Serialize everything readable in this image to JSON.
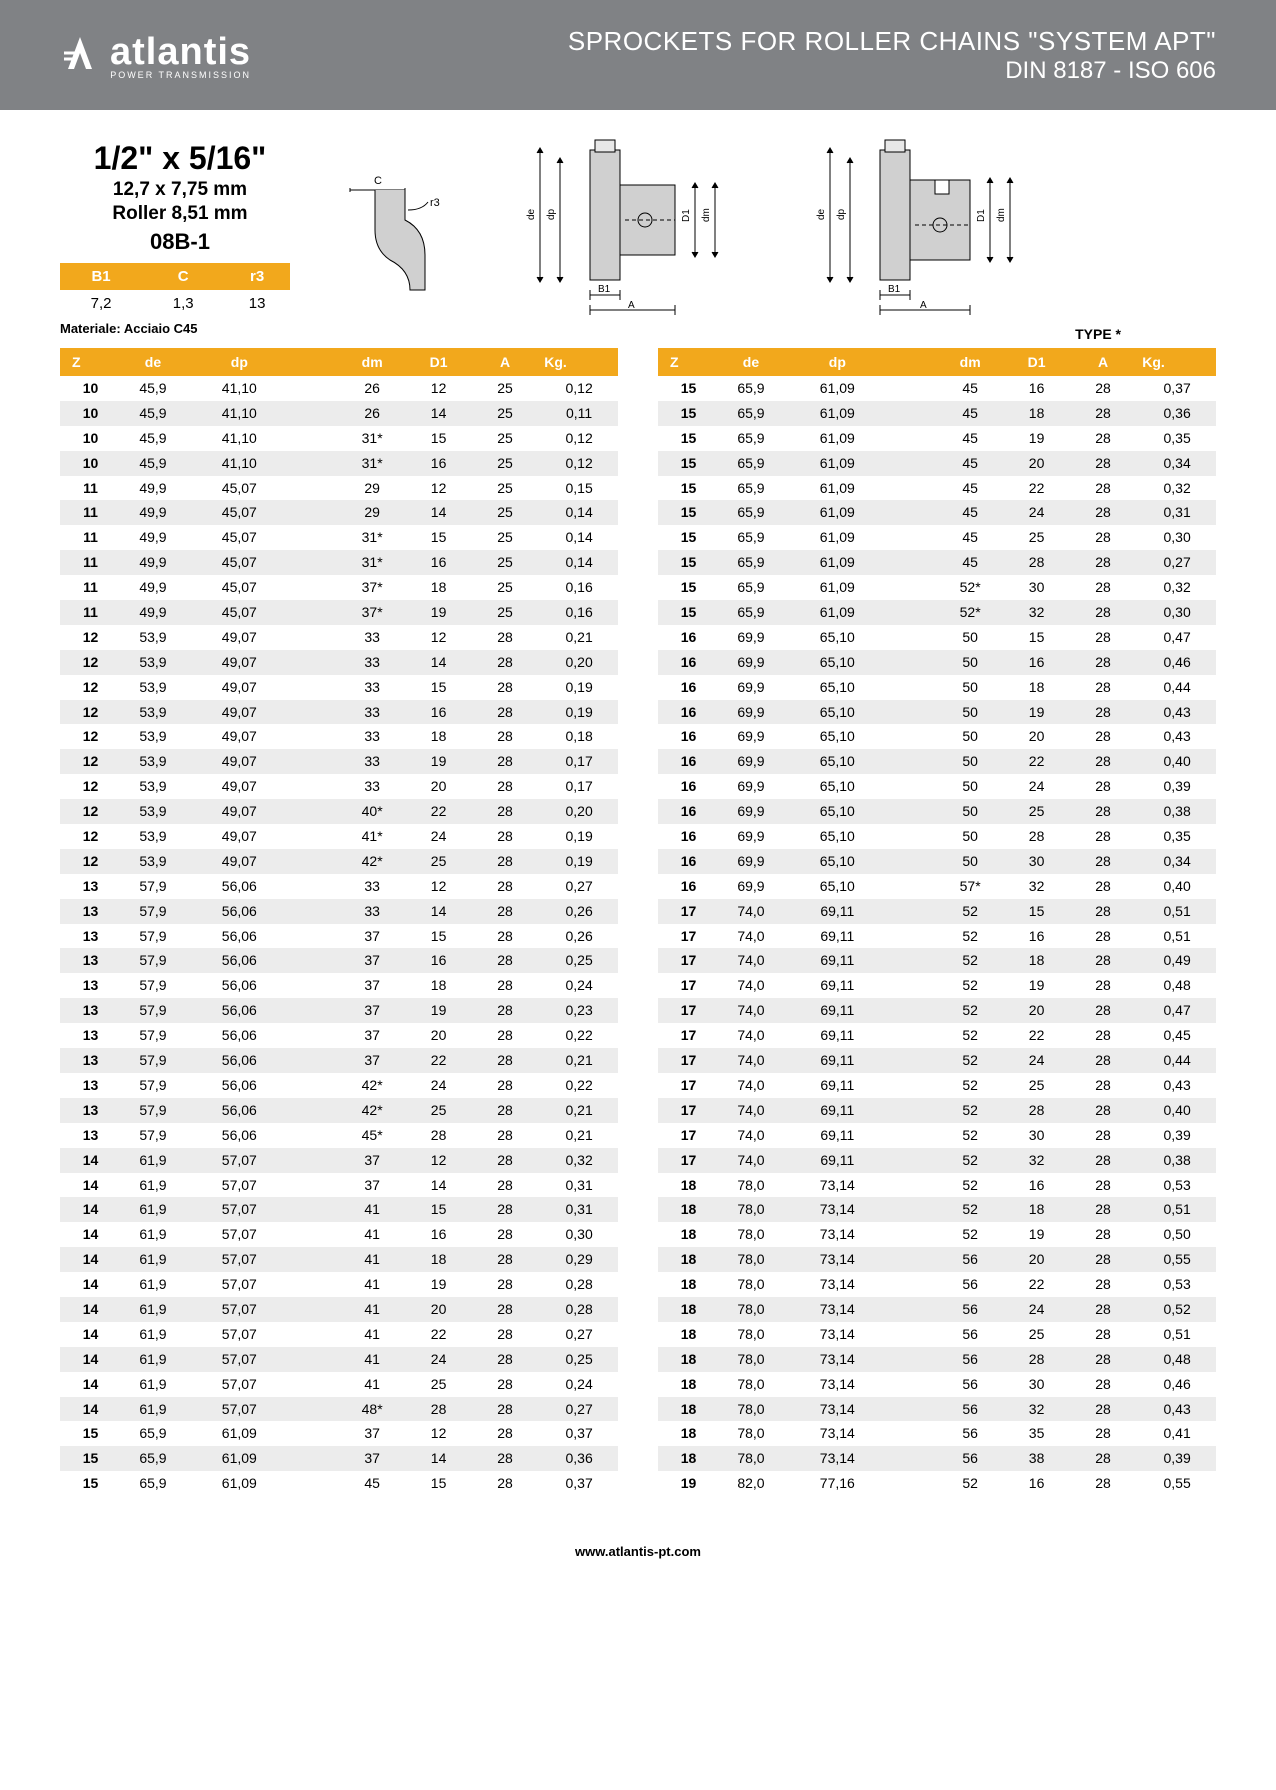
{
  "brand": "atlantis",
  "brand_sub": "POWER TRANSMISSION",
  "header_title": "SPROCKETS FOR ROLLER CHAINS \"SYSTEM APT\"",
  "header_sub": "DIN 8187 - ISO 606",
  "spec": {
    "main": "1/2\" x 5/16\"",
    "mm": "12,7 x 7,75 mm",
    "roller": "Roller 8,51 mm",
    "code": "08B-1"
  },
  "small_table": {
    "headers": [
      "B1",
      "C",
      "r3"
    ],
    "row": [
      "7,2",
      "1,3",
      "13"
    ]
  },
  "material": "Materiale: Acciaio C45",
  "type_label": "TYPE *",
  "columns": [
    "Z",
    "de",
    "dp",
    "",
    "dm",
    "D1",
    "A",
    "Kg."
  ],
  "footer": "www.atlantis-pt.com",
  "diagram_labels": {
    "c": "C",
    "r3": "r3",
    "de": "de",
    "dp": "dp",
    "d1": "D1",
    "dm": "dm",
    "b1": "B1",
    "a": "A"
  },
  "left_rows": [
    [
      "10",
      "45,9",
      "41,10",
      "",
      "26",
      "12",
      "25",
      "0,12"
    ],
    [
      "10",
      "45,9",
      "41,10",
      "",
      "26",
      "14",
      "25",
      "0,11"
    ],
    [
      "10",
      "45,9",
      "41,10",
      "",
      "31*",
      "15",
      "25",
      "0,12"
    ],
    [
      "10",
      "45,9",
      "41,10",
      "",
      "31*",
      "16",
      "25",
      "0,12"
    ],
    [
      "11",
      "49,9",
      "45,07",
      "",
      "29",
      "12",
      "25",
      "0,15"
    ],
    [
      "11",
      "49,9",
      "45,07",
      "",
      "29",
      "14",
      "25",
      "0,14"
    ],
    [
      "11",
      "49,9",
      "45,07",
      "",
      "31*",
      "15",
      "25",
      "0,14"
    ],
    [
      "11",
      "49,9",
      "45,07",
      "",
      "31*",
      "16",
      "25",
      "0,14"
    ],
    [
      "11",
      "49,9",
      "45,07",
      "",
      "37*",
      "18",
      "25",
      "0,16"
    ],
    [
      "11",
      "49,9",
      "45,07",
      "",
      "37*",
      "19",
      "25",
      "0,16"
    ],
    [
      "12",
      "53,9",
      "49,07",
      "",
      "33",
      "12",
      "28",
      "0,21"
    ],
    [
      "12",
      "53,9",
      "49,07",
      "",
      "33",
      "14",
      "28",
      "0,20"
    ],
    [
      "12",
      "53,9",
      "49,07",
      "",
      "33",
      "15",
      "28",
      "0,19"
    ],
    [
      "12",
      "53,9",
      "49,07",
      "",
      "33",
      "16",
      "28",
      "0,19"
    ],
    [
      "12",
      "53,9",
      "49,07",
      "",
      "33",
      "18",
      "28",
      "0,18"
    ],
    [
      "12",
      "53,9",
      "49,07",
      "",
      "33",
      "19",
      "28",
      "0,17"
    ],
    [
      "12",
      "53,9",
      "49,07",
      "",
      "33",
      "20",
      "28",
      "0,17"
    ],
    [
      "12",
      "53,9",
      "49,07",
      "",
      "40*",
      "22",
      "28",
      "0,20"
    ],
    [
      "12",
      "53,9",
      "49,07",
      "",
      "41*",
      "24",
      "28",
      "0,19"
    ],
    [
      "12",
      "53,9",
      "49,07",
      "",
      "42*",
      "25",
      "28",
      "0,19"
    ],
    [
      "13",
      "57,9",
      "56,06",
      "",
      "33",
      "12",
      "28",
      "0,27"
    ],
    [
      "13",
      "57,9",
      "56,06",
      "",
      "33",
      "14",
      "28",
      "0,26"
    ],
    [
      "13",
      "57,9",
      "56,06",
      "",
      "37",
      "15",
      "28",
      "0,26"
    ],
    [
      "13",
      "57,9",
      "56,06",
      "",
      "37",
      "16",
      "28",
      "0,25"
    ],
    [
      "13",
      "57,9",
      "56,06",
      "",
      "37",
      "18",
      "28",
      "0,24"
    ],
    [
      "13",
      "57,9",
      "56,06",
      "",
      "37",
      "19",
      "28",
      "0,23"
    ],
    [
      "13",
      "57,9",
      "56,06",
      "",
      "37",
      "20",
      "28",
      "0,22"
    ],
    [
      "13",
      "57,9",
      "56,06",
      "",
      "37",
      "22",
      "28",
      "0,21"
    ],
    [
      "13",
      "57,9",
      "56,06",
      "",
      "42*",
      "24",
      "28",
      "0,22"
    ],
    [
      "13",
      "57,9",
      "56,06",
      "",
      "42*",
      "25",
      "28",
      "0,21"
    ],
    [
      "13",
      "57,9",
      "56,06",
      "",
      "45*",
      "28",
      "28",
      "0,21"
    ],
    [
      "14",
      "61,9",
      "57,07",
      "",
      "37",
      "12",
      "28",
      "0,32"
    ],
    [
      "14",
      "61,9",
      "57,07",
      "",
      "37",
      "14",
      "28",
      "0,31"
    ],
    [
      "14",
      "61,9",
      "57,07",
      "",
      "41",
      "15",
      "28",
      "0,31"
    ],
    [
      "14",
      "61,9",
      "57,07",
      "",
      "41",
      "16",
      "28",
      "0,30"
    ],
    [
      "14",
      "61,9",
      "57,07",
      "",
      "41",
      "18",
      "28",
      "0,29"
    ],
    [
      "14",
      "61,9",
      "57,07",
      "",
      "41",
      "19",
      "28",
      "0,28"
    ],
    [
      "14",
      "61,9",
      "57,07",
      "",
      "41",
      "20",
      "28",
      "0,28"
    ],
    [
      "14",
      "61,9",
      "57,07",
      "",
      "41",
      "22",
      "28",
      "0,27"
    ],
    [
      "14",
      "61,9",
      "57,07",
      "",
      "41",
      "24",
      "28",
      "0,25"
    ],
    [
      "14",
      "61,9",
      "57,07",
      "",
      "41",
      "25",
      "28",
      "0,24"
    ],
    [
      "14",
      "61,9",
      "57,07",
      "",
      "48*",
      "28",
      "28",
      "0,27"
    ],
    [
      "15",
      "65,9",
      "61,09",
      "",
      "37",
      "12",
      "28",
      "0,37"
    ],
    [
      "15",
      "65,9",
      "61,09",
      "",
      "37",
      "14",
      "28",
      "0,36"
    ],
    [
      "15",
      "65,9",
      "61,09",
      "",
      "45",
      "15",
      "28",
      "0,37"
    ]
  ],
  "right_rows": [
    [
      "15",
      "65,9",
      "61,09",
      "",
      "45",
      "16",
      "28",
      "0,37"
    ],
    [
      "15",
      "65,9",
      "61,09",
      "",
      "45",
      "18",
      "28",
      "0,36"
    ],
    [
      "15",
      "65,9",
      "61,09",
      "",
      "45",
      "19",
      "28",
      "0,35"
    ],
    [
      "15",
      "65,9",
      "61,09",
      "",
      "45",
      "20",
      "28",
      "0,34"
    ],
    [
      "15",
      "65,9",
      "61,09",
      "",
      "45",
      "22",
      "28",
      "0,32"
    ],
    [
      "15",
      "65,9",
      "61,09",
      "",
      "45",
      "24",
      "28",
      "0,31"
    ],
    [
      "15",
      "65,9",
      "61,09",
      "",
      "45",
      "25",
      "28",
      "0,30"
    ],
    [
      "15",
      "65,9",
      "61,09",
      "",
      "45",
      "28",
      "28",
      "0,27"
    ],
    [
      "15",
      "65,9",
      "61,09",
      "",
      "52*",
      "30",
      "28",
      "0,32"
    ],
    [
      "15",
      "65,9",
      "61,09",
      "",
      "52*",
      "32",
      "28",
      "0,30"
    ],
    [
      "16",
      "69,9",
      "65,10",
      "",
      "50",
      "15",
      "28",
      "0,47"
    ],
    [
      "16",
      "69,9",
      "65,10",
      "",
      "50",
      "16",
      "28",
      "0,46"
    ],
    [
      "16",
      "69,9",
      "65,10",
      "",
      "50",
      "18",
      "28",
      "0,44"
    ],
    [
      "16",
      "69,9",
      "65,10",
      "",
      "50",
      "19",
      "28",
      "0,43"
    ],
    [
      "16",
      "69,9",
      "65,10",
      "",
      "50",
      "20",
      "28",
      "0,43"
    ],
    [
      "16",
      "69,9",
      "65,10",
      "",
      "50",
      "22",
      "28",
      "0,40"
    ],
    [
      "16",
      "69,9",
      "65,10",
      "",
      "50",
      "24",
      "28",
      "0,39"
    ],
    [
      "16",
      "69,9",
      "65,10",
      "",
      "50",
      "25",
      "28",
      "0,38"
    ],
    [
      "16",
      "69,9",
      "65,10",
      "",
      "50",
      "28",
      "28",
      "0,35"
    ],
    [
      "16",
      "69,9",
      "65,10",
      "",
      "50",
      "30",
      "28",
      "0,34"
    ],
    [
      "16",
      "69,9",
      "65,10",
      "",
      "57*",
      "32",
      "28",
      "0,40"
    ],
    [
      "17",
      "74,0",
      "69,11",
      "",
      "52",
      "15",
      "28",
      "0,51"
    ],
    [
      "17",
      "74,0",
      "69,11",
      "",
      "52",
      "16",
      "28",
      "0,51"
    ],
    [
      "17",
      "74,0",
      "69,11",
      "",
      "52",
      "18",
      "28",
      "0,49"
    ],
    [
      "17",
      "74,0",
      "69,11",
      "",
      "52",
      "19",
      "28",
      "0,48"
    ],
    [
      "17",
      "74,0",
      "69,11",
      "",
      "52",
      "20",
      "28",
      "0,47"
    ],
    [
      "17",
      "74,0",
      "69,11",
      "",
      "52",
      "22",
      "28",
      "0,45"
    ],
    [
      "17",
      "74,0",
      "69,11",
      "",
      "52",
      "24",
      "28",
      "0,44"
    ],
    [
      "17",
      "74,0",
      "69,11",
      "",
      "52",
      "25",
      "28",
      "0,43"
    ],
    [
      "17",
      "74,0",
      "69,11",
      "",
      "52",
      "28",
      "28",
      "0,40"
    ],
    [
      "17",
      "74,0",
      "69,11",
      "",
      "52",
      "30",
      "28",
      "0,39"
    ],
    [
      "17",
      "74,0",
      "69,11",
      "",
      "52",
      "32",
      "28",
      "0,38"
    ],
    [
      "18",
      "78,0",
      "73,14",
      "",
      "52",
      "16",
      "28",
      "0,53"
    ],
    [
      "18",
      "78,0",
      "73,14",
      "",
      "52",
      "18",
      "28",
      "0,51"
    ],
    [
      "18",
      "78,0",
      "73,14",
      "",
      "52",
      "19",
      "28",
      "0,50"
    ],
    [
      "18",
      "78,0",
      "73,14",
      "",
      "56",
      "20",
      "28",
      "0,55"
    ],
    [
      "18",
      "78,0",
      "73,14",
      "",
      "56",
      "22",
      "28",
      "0,53"
    ],
    [
      "18",
      "78,0",
      "73,14",
      "",
      "56",
      "24",
      "28",
      "0,52"
    ],
    [
      "18",
      "78,0",
      "73,14",
      "",
      "56",
      "25",
      "28",
      "0,51"
    ],
    [
      "18",
      "78,0",
      "73,14",
      "",
      "56",
      "28",
      "28",
      "0,48"
    ],
    [
      "18",
      "78,0",
      "73,14",
      "",
      "56",
      "30",
      "28",
      "0,46"
    ],
    [
      "18",
      "78,0",
      "73,14",
      "",
      "56",
      "32",
      "28",
      "0,43"
    ],
    [
      "18",
      "78,0",
      "73,14",
      "",
      "56",
      "35",
      "28",
      "0,41"
    ],
    [
      "18",
      "78,0",
      "73,14",
      "",
      "56",
      "38",
      "28",
      "0,39"
    ],
    [
      "19",
      "82,0",
      "77,16",
      "",
      "52",
      "16",
      "28",
      "0,55"
    ]
  ]
}
